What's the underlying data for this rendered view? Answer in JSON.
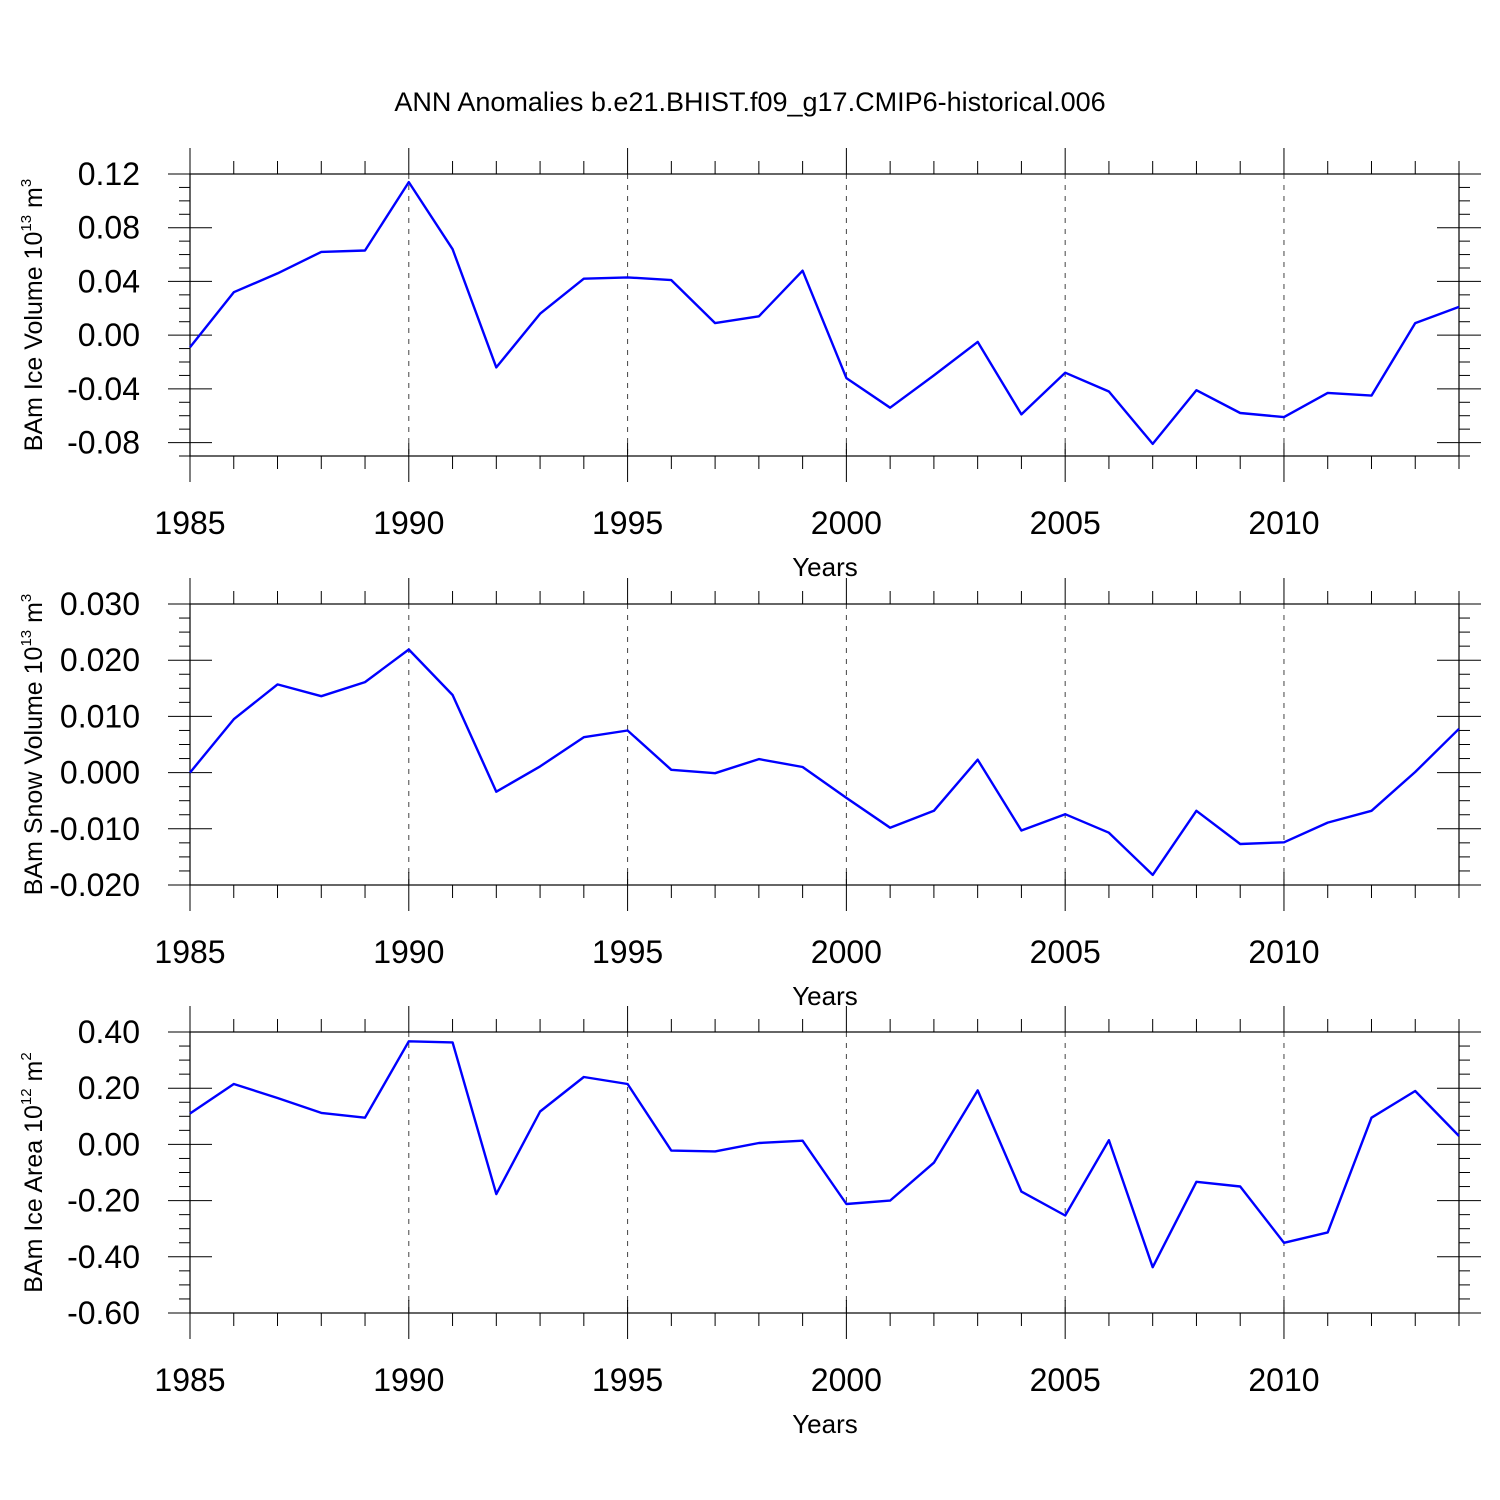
{
  "figure": {
    "title": "ANN Anomalies b.e21.BHIST.f09_g17.CMIP6-historical.006"
  },
  "chart_data": [
    {
      "type": "line",
      "title": "",
      "xlabel": "Years",
      "ylabel": {
        "text": "BAm Ice Volume 10",
        "exp": "13",
        "unit": " m",
        "unit_exp": "3"
      },
      "xlim": [
        1985,
        2014
      ],
      "ylim": [
        -0.09,
        0.12
      ],
      "x_ticks": [
        1985,
        1990,
        1995,
        2000,
        2005,
        2010
      ],
      "y_ticks": [
        0.12,
        0.08,
        0.04,
        0.0,
        -0.04,
        -0.08
      ],
      "y_tick_labels": [
        "0.12",
        "0.08",
        "0.04",
        "0.00",
        "-0.04",
        "-0.08"
      ],
      "grid": "vertical dashed at major x ticks",
      "line_color": "#0000ff",
      "x": [
        1985,
        1986,
        1987,
        1988,
        1989,
        1990,
        1991,
        1992,
        1993,
        1994,
        1995,
        1996,
        1997,
        1998,
        1999,
        2000,
        2001,
        2002,
        2003,
        2004,
        2005,
        2006,
        2007,
        2008,
        2009,
        2010,
        2011,
        2012,
        2013,
        2014
      ],
      "values": [
        -0.009,
        0.032,
        0.046,
        0.062,
        0.063,
        0.114,
        0.064,
        -0.024,
        0.016,
        0.042,
        0.043,
        0.041,
        0.009,
        0.014,
        0.048,
        -0.032,
        -0.054,
        -0.03,
        -0.005,
        -0.059,
        -0.028,
        -0.042,
        -0.081,
        -0.041,
        -0.058,
        -0.061,
        -0.043,
        -0.045,
        0.009,
        0.021
      ]
    },
    {
      "type": "line",
      "title": "",
      "xlabel": "Years",
      "ylabel": {
        "text": "BAm Snow Volume 10",
        "exp": "13",
        "unit": " m",
        "unit_exp": "3"
      },
      "xlim": [
        1985,
        2014
      ],
      "ylim": [
        -0.02,
        0.03
      ],
      "x_ticks": [
        1985,
        1990,
        1995,
        2000,
        2005,
        2010
      ],
      "y_ticks": [
        0.03,
        0.02,
        0.01,
        0.0,
        -0.01,
        -0.02
      ],
      "y_tick_labels": [
        "0.030",
        "0.020",
        "0.010",
        "0.000",
        "-0.010",
        "-0.020"
      ],
      "grid": "vertical dashed at major x ticks",
      "line_color": "#0000ff",
      "x": [
        1985,
        1986,
        1987,
        1988,
        1989,
        1990,
        1991,
        1992,
        1993,
        1994,
        1995,
        1996,
        1997,
        1998,
        1999,
        2000,
        2001,
        2002,
        2003,
        2004,
        2005,
        2006,
        2007,
        2008,
        2009,
        2010,
        2011,
        2012,
        2013,
        2014
      ],
      "values": [
        0.0,
        0.0095,
        0.0157,
        0.0136,
        0.0161,
        0.0219,
        0.0138,
        -0.0034,
        0.0011,
        0.0063,
        0.0075,
        0.0005,
        -0.0001,
        0.0024,
        0.001,
        -0.0045,
        -0.0098,
        -0.0068,
        0.0023,
        -0.0103,
        -0.0074,
        -0.0107,
        -0.0182,
        -0.0068,
        -0.0127,
        -0.0124,
        -0.0089,
        -0.0068,
        0.0001,
        0.0078
      ]
    },
    {
      "type": "line",
      "title": "",
      "xlabel": "Years",
      "ylabel": {
        "text": "BAm Ice Area 10",
        "exp": "12",
        "unit": " m",
        "unit_exp": "2"
      },
      "xlim": [
        1985,
        2014
      ],
      "ylim": [
        -0.6,
        0.4
      ],
      "x_ticks": [
        1985,
        1990,
        1995,
        2000,
        2005,
        2010
      ],
      "y_ticks": [
        0.4,
        0.2,
        0.0,
        -0.2,
        -0.4,
        -0.6
      ],
      "y_tick_labels": [
        "0.40",
        "0.20",
        "0.00",
        "-0.20",
        "-0.40",
        "-0.60"
      ],
      "grid": "vertical dashed at major x ticks",
      "line_color": "#0000ff",
      "x": [
        1985,
        1986,
        1987,
        1988,
        1989,
        1990,
        1991,
        1992,
        1993,
        1994,
        1995,
        1996,
        1997,
        1998,
        1999,
        2000,
        2001,
        2002,
        2003,
        2004,
        2005,
        2006,
        2007,
        2008,
        2009,
        2010,
        2011,
        2012,
        2013,
        2014
      ],
      "values": [
        0.11,
        0.215,
        0.165,
        0.112,
        0.095,
        0.367,
        0.363,
        -0.177,
        0.117,
        0.24,
        0.215,
        -0.022,
        -0.025,
        0.005,
        0.013,
        -0.212,
        -0.2,
        -0.065,
        0.192,
        -0.168,
        -0.253,
        0.015,
        -0.437,
        -0.133,
        -0.15,
        -0.35,
        -0.313,
        0.095,
        0.19,
        0.03
      ]
    }
  ]
}
